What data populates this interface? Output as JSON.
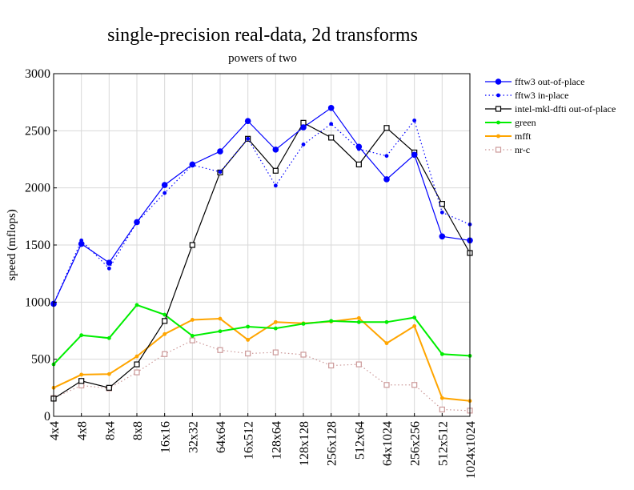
{
  "chart_data": {
    "type": "line",
    "title": "single-precision real-data, 2d transforms",
    "subtitle": "powers of two",
    "xlabel": "",
    "ylabel": "speed (mflops)",
    "ylim": [
      0,
      3000
    ],
    "yticks": [
      0,
      500,
      1000,
      1500,
      2000,
      2500,
      3000
    ],
    "grid": true,
    "legend_position": "right",
    "categories": [
      "4x4",
      "4x8",
      "8x4",
      "8x8",
      "16x16",
      "32x32",
      "64x64",
      "16x512",
      "128x64",
      "128x128",
      "256x128",
      "512x64",
      "64x1024",
      "256x256",
      "512x512",
      "1024x1024"
    ],
    "series": [
      {
        "name": "fftw3 out-of-place",
        "color": "#0000ff",
        "style": "solid",
        "marker": "dot-large",
        "values": [
          985,
          1510,
          1345,
          1700,
          2025,
          2205,
          2320,
          2585,
          2335,
          2530,
          2700,
          2360,
          2075,
          2290,
          1575,
          1540
        ]
      },
      {
        "name": "fftw3 in-place",
        "color": "#0000ff",
        "style": "dotted",
        "marker": "dot-small",
        "values": [
          985,
          1540,
          1295,
          1700,
          1955,
          2200,
          2140,
          2430,
          2020,
          2380,
          2560,
          2340,
          2280,
          2590,
          1785,
          1680
        ]
      },
      {
        "name": "intel-mkl-dfti out-of-place",
        "color": "#000000",
        "style": "solid",
        "marker": "square-open",
        "values": [
          155,
          310,
          250,
          455,
          835,
          1500,
          2135,
          2430,
          2150,
          2570,
          2440,
          2205,
          2525,
          2310,
          1860,
          1430
        ]
      },
      {
        "name": "green",
        "color": "#00ee00",
        "style": "solid",
        "marker": "dot-small",
        "values": [
          455,
          710,
          685,
          975,
          890,
          705,
          745,
          785,
          770,
          810,
          835,
          825,
          825,
          865,
          545,
          530
        ]
      },
      {
        "name": "mfft",
        "color": "#ffa500",
        "style": "solid",
        "marker": "dot-small",
        "values": [
          250,
          365,
          370,
          525,
          720,
          845,
          855,
          670,
          825,
          815,
          830,
          860,
          640,
          790,
          160,
          135
        ]
      },
      {
        "name": "nr-c",
        "color": "#cc9999",
        "style": "dotted",
        "marker": "square-open",
        "values": [
          160,
          270,
          245,
          385,
          545,
          665,
          580,
          550,
          560,
          540,
          445,
          455,
          275,
          275,
          60,
          50
        ]
      }
    ]
  }
}
